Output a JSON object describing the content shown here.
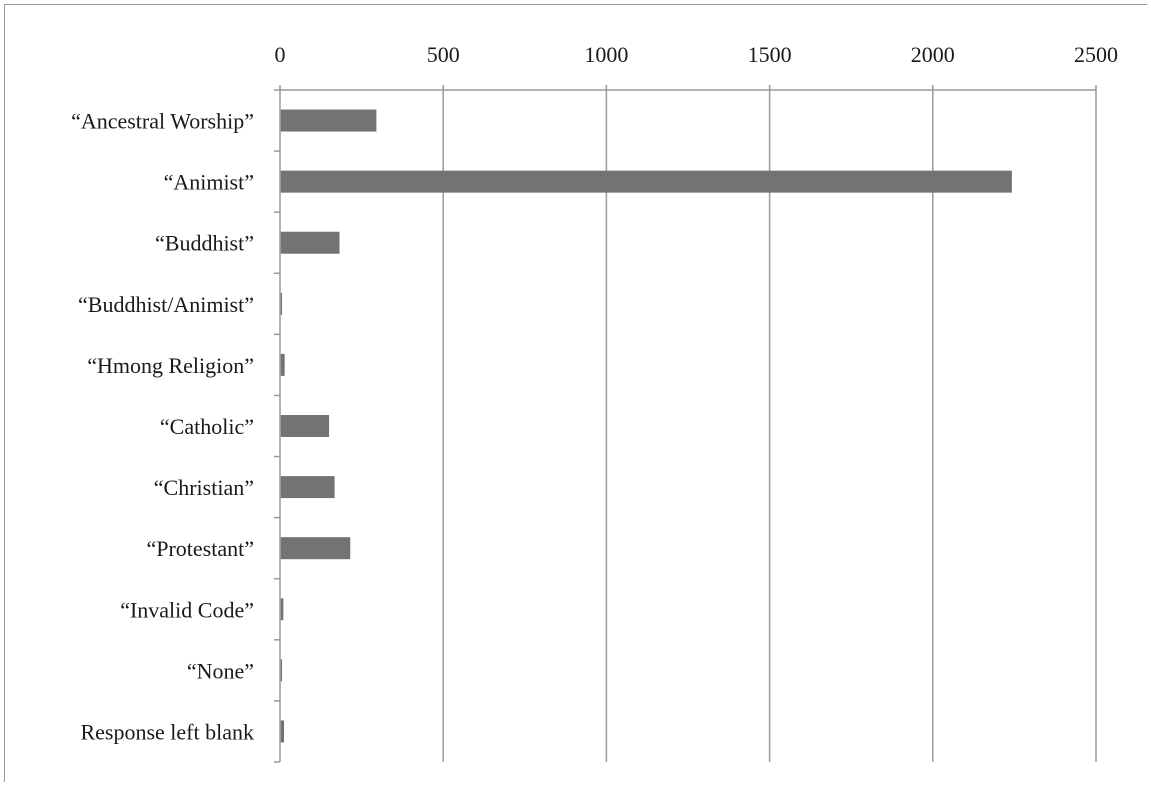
{
  "chart_data": {
    "type": "bar",
    "orientation": "horizontal",
    "title": "",
    "xlabel": "",
    "ylabel": "",
    "xlim": [
      0,
      2500
    ],
    "x_ticks": [
      0,
      500,
      1000,
      1500,
      2000,
      2500
    ],
    "x_tick_labels": [
      "0",
      "500",
      "1000",
      "1500",
      "2000",
      "2500"
    ],
    "x_axis_position": "top",
    "grid": "vertical",
    "legend": "none",
    "bar_color": "#737373",
    "categories": [
      "“Ancestral Worship”",
      "“Animist”",
      "“Buddhist”",
      "“Buddhist/Animist”",
      "“Hmong Religion”",
      "“Catholic”",
      "“Christian”",
      "“Protestant”",
      "“Invalid Code”",
      "“None”",
      "Response left blank"
    ],
    "values": [
      293,
      2240,
      180,
      4,
      12,
      148,
      165,
      213,
      8,
      4,
      10
    ]
  }
}
